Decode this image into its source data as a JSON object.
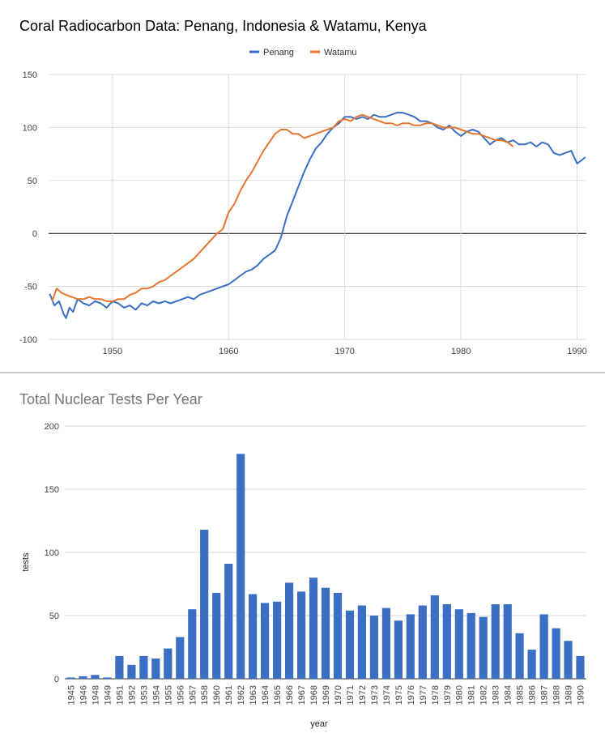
{
  "chart_data": [
    {
      "type": "line",
      "title": "Coral Radiocarbon Data: Penang, Indonesia & Watamu, Kenya",
      "xlim": [
        1944.5,
        1990.8
      ],
      "ylim": [
        -100,
        150
      ],
      "yticks": [
        150,
        100,
        50,
        0,
        -50,
        -100
      ],
      "xticks": [
        1950,
        1960,
        1970,
        1980,
        1990
      ],
      "grid": true,
      "legend": "top-center",
      "series": [
        {
          "name": "Penang",
          "color": "#3a6fc4",
          "x": [
            1944.6,
            1945.0,
            1945.4,
            1945.8,
            1946.0,
            1946.3,
            1946.6,
            1947.0,
            1947.5,
            1948.0,
            1948.5,
            1949.0,
            1949.5,
            1950.0,
            1950.5,
            1951.0,
            1951.5,
            1952.0,
            1952.5,
            1953.0,
            1953.5,
            1954.0,
            1954.5,
            1955.0,
            1955.5,
            1956.0,
            1956.5,
            1957.0,
            1957.5,
            1958.0,
            1958.5,
            1959.0,
            1959.5,
            1960.0,
            1960.5,
            1961.0,
            1961.5,
            1962.0,
            1962.5,
            1963.0,
            1963.5,
            1964.0,
            1964.5,
            1965.0,
            1965.5,
            1966.0,
            1966.5,
            1967.0,
            1967.5,
            1968.0,
            1968.5,
            1969.0,
            1969.5,
            1970.0,
            1970.5,
            1971.0,
            1971.5,
            1972.0,
            1972.5,
            1973.0,
            1973.5,
            1974.0,
            1974.5,
            1975.0,
            1975.5,
            1976.0,
            1976.5,
            1977.0,
            1977.5,
            1978.0,
            1978.5,
            1979.0,
            1979.5,
            1980.0,
            1980.5,
            1981.0,
            1981.5,
            1982.0,
            1982.5,
            1983.0,
            1983.5,
            1984.0,
            1984.5,
            1985.0,
            1985.5,
            1986.0,
            1986.5,
            1987.0,
            1987.5,
            1988.0,
            1988.5,
            1989.0,
            1989.5,
            1990.0,
            1990.5,
            1990.7
          ],
          "y": [
            -57,
            -68,
            -64,
            -76,
            -80,
            -70,
            -74,
            -62,
            -66,
            -68,
            -64,
            -66,
            -70,
            -64,
            -66,
            -70,
            -68,
            -72,
            -66,
            -68,
            -64,
            -66,
            -64,
            -66,
            -64,
            -62,
            -60,
            -62,
            -58,
            -56,
            -54,
            -52,
            -50,
            -48,
            -44,
            -40,
            -36,
            -34,
            -30,
            -24,
            -20,
            -16,
            -4,
            16,
            30,
            44,
            58,
            70,
            80,
            86,
            94,
            100,
            104,
            110,
            110,
            108,
            110,
            108,
            112,
            110,
            110,
            112,
            114,
            114,
            112,
            110,
            106,
            106,
            104,
            100,
            98,
            102,
            96,
            92,
            96,
            98,
            96,
            90,
            84,
            88,
            90,
            86,
            88,
            84,
            84,
            86,
            82,
            86,
            84,
            76,
            74,
            76,
            78,
            66,
            70,
            72
          ]
        },
        {
          "name": "Watamu",
          "color": "#e8752f",
          "x": [
            1944.8,
            1945.2,
            1945.6,
            1946.0,
            1946.5,
            1947.0,
            1947.5,
            1948.0,
            1948.5,
            1949.0,
            1949.5,
            1950.0,
            1950.5,
            1951.0,
            1951.5,
            1952.0,
            1952.5,
            1953.0,
            1953.5,
            1954.0,
            1954.5,
            1955.0,
            1955.5,
            1956.0,
            1956.5,
            1957.0,
            1957.5,
            1958.0,
            1958.5,
            1959.0,
            1959.5,
            1960.0,
            1960.5,
            1961.0,
            1961.5,
            1962.0,
            1962.5,
            1963.0,
            1963.5,
            1964.0,
            1964.5,
            1965.0,
            1965.5,
            1966.0,
            1966.5,
            1967.0,
            1967.5,
            1968.0,
            1968.5,
            1969.0,
            1969.5,
            1970.0,
            1970.5,
            1971.0,
            1971.5,
            1972.0,
            1972.5,
            1973.0,
            1973.5,
            1974.0,
            1974.5,
            1975.0,
            1975.5,
            1976.0,
            1976.5,
            1977.0,
            1977.5,
            1978.0,
            1978.5,
            1979.0,
            1979.5,
            1980.0,
            1980.5,
            1981.0,
            1981.5,
            1982.0,
            1982.5,
            1983.0,
            1983.5,
            1984.0,
            1984.5
          ],
          "y": [
            -64,
            -52,
            -56,
            -58,
            -60,
            -62,
            -62,
            -60,
            -62,
            -62,
            -64,
            -64,
            -62,
            -62,
            -58,
            -56,
            -52,
            -52,
            -50,
            -46,
            -44,
            -40,
            -36,
            -32,
            -28,
            -24,
            -18,
            -12,
            -6,
            0,
            4,
            20,
            28,
            40,
            50,
            58,
            68,
            78,
            86,
            94,
            98,
            98,
            94,
            94,
            90,
            92,
            94,
            96,
            98,
            100,
            106,
            108,
            106,
            110,
            112,
            110,
            108,
            106,
            104,
            104,
            102,
            104,
            104,
            102,
            102,
            104,
            104,
            102,
            100,
            100,
            100,
            98,
            96,
            94,
            94,
            92,
            90,
            88,
            88,
            86,
            82
          ]
        }
      ]
    },
    {
      "type": "bar",
      "title": "Total Nuclear Tests Per Year",
      "xlabel": "year",
      "ylabel": "tests",
      "ylim": [
        0,
        200
      ],
      "yticks": [
        200,
        150,
        100,
        50,
        0
      ],
      "grid": true,
      "color": "#3a6fc4",
      "categories": [
        "1945",
        "1946",
        "1948",
        "1949",
        "1951",
        "1952",
        "1953",
        "1954",
        "1955",
        "1956",
        "1957",
        "1958",
        "1960",
        "1961",
        "1962",
        "1963",
        "1964",
        "1965",
        "1966",
        "1967",
        "1968",
        "1969",
        "1970",
        "1971",
        "1972",
        "1973",
        "1974",
        "1975",
        "1976",
        "1977",
        "1978",
        "1979",
        "1980",
        "1981",
        "1982",
        "1983",
        "1984",
        "1985",
        "1986",
        "1987",
        "1988",
        "1989",
        "1990"
      ],
      "values": [
        1,
        2,
        3,
        1,
        18,
        11,
        18,
        16,
        24,
        33,
        55,
        118,
        68,
        91,
        178,
        67,
        60,
        61,
        76,
        69,
        80,
        72,
        68,
        54,
        58,
        50,
        56,
        46,
        51,
        58,
        66,
        59,
        55,
        52,
        49,
        59,
        59,
        36,
        23,
        51,
        40,
        30,
        18
      ]
    }
  ]
}
